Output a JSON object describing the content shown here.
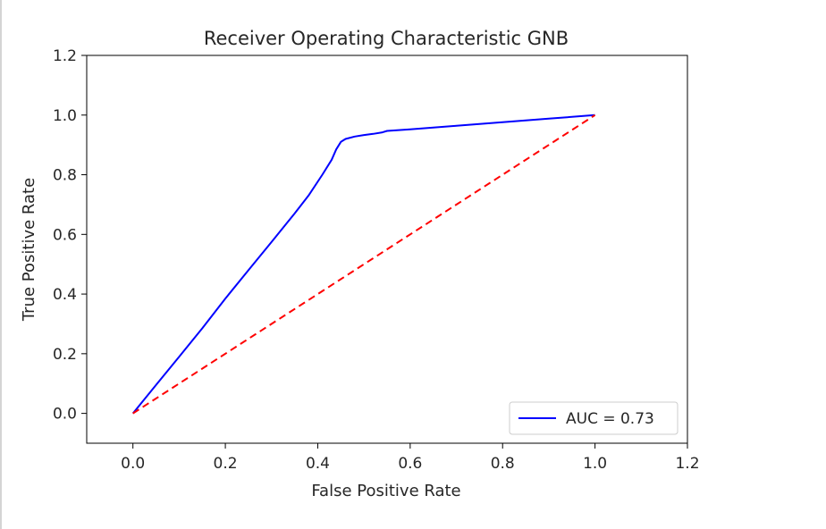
{
  "chart_data": {
    "type": "line",
    "title": "Receiver Operating Characteristic GNB",
    "xlabel": "False Positive Rate",
    "ylabel": "True Positive Rate",
    "xlim": [
      -0.1,
      1.2
    ],
    "ylim": [
      -0.1,
      1.2
    ],
    "xticks": [
      0.0,
      0.2,
      0.4,
      0.6,
      0.8,
      1.0,
      1.2
    ],
    "yticks": [
      0.0,
      0.2,
      0.4,
      0.6,
      0.8,
      1.0,
      1.2
    ],
    "xtick_labels": [
      "0.0",
      "0.2",
      "0.4",
      "0.6",
      "0.8",
      "1.0",
      "1.2"
    ],
    "ytick_labels": [
      "0.0",
      "0.2",
      "0.4",
      "0.6",
      "0.8",
      "1.0",
      "1.2"
    ],
    "grid": false,
    "legend_placement": "lower-right",
    "series": [
      {
        "name": "AUC = 0.73",
        "color": "#0000ff",
        "style": "solid",
        "x": [
          0.0,
          0.05,
          0.1,
          0.15,
          0.2,
          0.25,
          0.3,
          0.35,
          0.38,
          0.41,
          0.43,
          0.44,
          0.45,
          0.46,
          0.48,
          0.5,
          0.52,
          0.54,
          0.55,
          0.6,
          0.7,
          0.8,
          0.9,
          1.0
        ],
        "y": [
          0.0,
          0.095,
          0.19,
          0.285,
          0.385,
          0.48,
          0.575,
          0.67,
          0.73,
          0.8,
          0.85,
          0.885,
          0.91,
          0.92,
          0.928,
          0.933,
          0.937,
          0.942,
          0.947,
          0.952,
          0.964,
          0.976,
          0.988,
          1.0
        ]
      },
      {
        "color": "#ff0000",
        "style": "dashed",
        "x": [
          0.0,
          1.0
        ],
        "y": [
          0.0,
          1.0
        ]
      }
    ]
  }
}
